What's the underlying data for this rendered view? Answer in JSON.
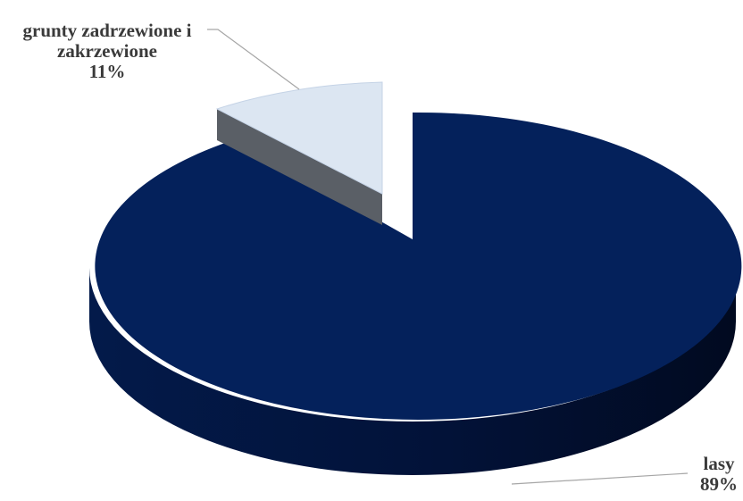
{
  "chart_data": {
    "type": "pie",
    "style": "3d-exploded",
    "title": "",
    "slices": [
      {
        "name": "lasy",
        "value": 89,
        "label_lines": [
          "lasy"
        ],
        "percent_label": "89%",
        "color": "#04215b",
        "side_color": "#020f2e",
        "exploded": false
      },
      {
        "name": "grunty zadrzewione i zakrzewione",
        "value": 11,
        "label_lines": [
          "grunty zadrzewione i",
          "zakrzewione"
        ],
        "percent_label": "11%",
        "color": "#dce6f2",
        "side_color": "#5a5f66",
        "exploded": true
      }
    ],
    "legend": "none",
    "leader_line_color": "#a6a6a6"
  }
}
